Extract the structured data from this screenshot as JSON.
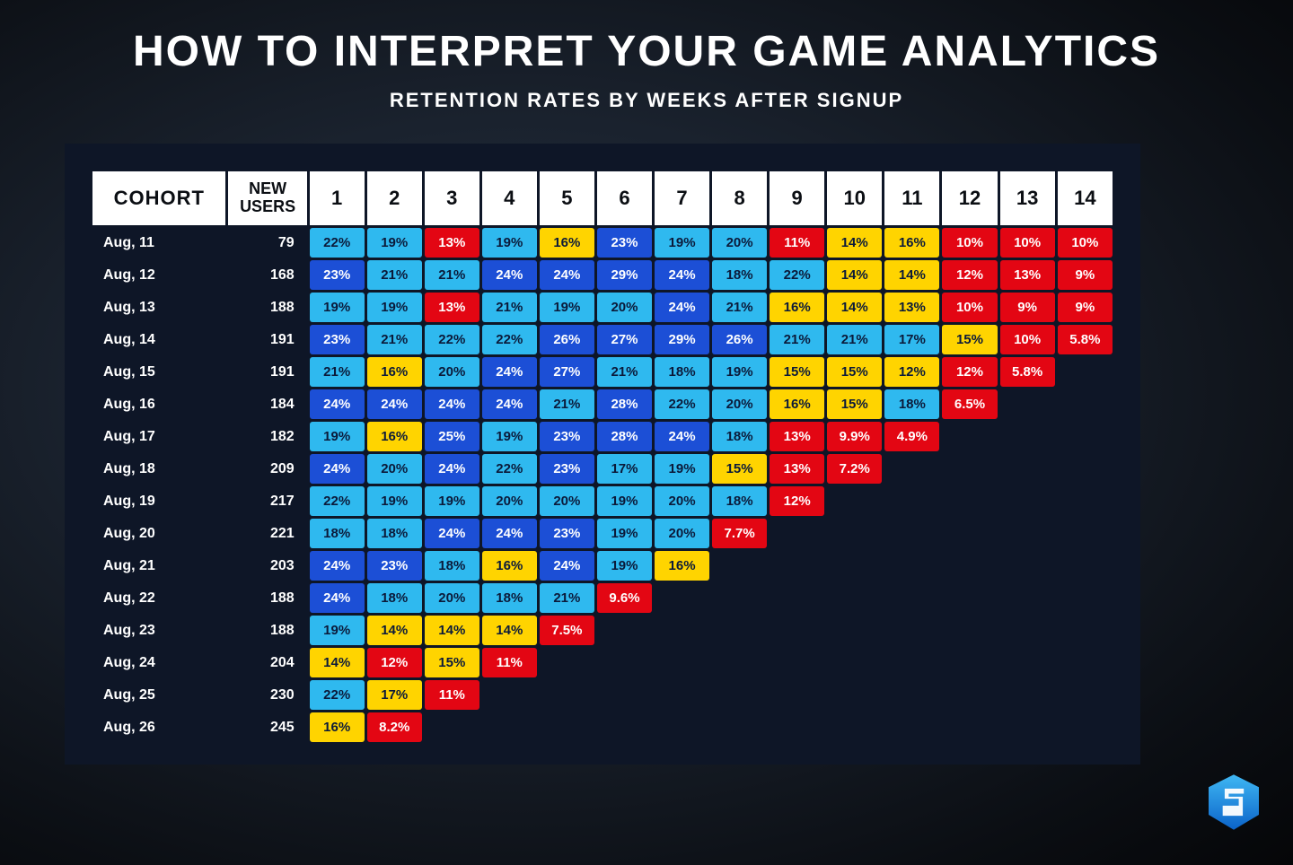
{
  "title": "HOW TO INTERPRET YOUR GAME ANALYTICS",
  "subtitle": "RETENTION RATES BY WEEKS AFTER SIGNUP",
  "table": {
    "cohort_header": "COHORT",
    "new_users_header": "NEW\nUSERS",
    "week_headers": [
      "1",
      "2",
      "3",
      "4",
      "5",
      "6",
      "7",
      "8",
      "9",
      "10",
      "11",
      "12",
      "13",
      "14"
    ],
    "header_bg": "#ffffff",
    "header_fg": "#0b0e13",
    "panel_bg": "#0e1627",
    "row_label_color": "#ffffff",
    "colors": {
      "dark_blue": {
        "bg": "#1c4fd6",
        "fg": "#ffffff"
      },
      "light_blue": {
        "bg": "#2fb9ef",
        "fg": "#0b1a3a"
      },
      "yellow": {
        "bg": "#ffd400",
        "fg": "#0b1a3a"
      },
      "red": {
        "bg": "#e30613",
        "fg": "#ffffff"
      }
    },
    "rows": [
      {
        "cohort": "Aug, 11",
        "new_users": 79,
        "cells": [
          {
            "v": "22%",
            "c": "light_blue"
          },
          {
            "v": "19%",
            "c": "light_blue"
          },
          {
            "v": "13%",
            "c": "red"
          },
          {
            "v": "19%",
            "c": "light_blue"
          },
          {
            "v": "16%",
            "c": "yellow"
          },
          {
            "v": "23%",
            "c": "dark_blue"
          },
          {
            "v": "19%",
            "c": "light_blue"
          },
          {
            "v": "20%",
            "c": "light_blue"
          },
          {
            "v": "11%",
            "c": "red"
          },
          {
            "v": "14%",
            "c": "yellow"
          },
          {
            "v": "16%",
            "c": "yellow"
          },
          {
            "v": "10%",
            "c": "red"
          },
          {
            "v": "10%",
            "c": "red"
          },
          {
            "v": "10%",
            "c": "red"
          }
        ]
      },
      {
        "cohort": "Aug, 12",
        "new_users": 168,
        "cells": [
          {
            "v": "23%",
            "c": "dark_blue"
          },
          {
            "v": "21%",
            "c": "light_blue"
          },
          {
            "v": "21%",
            "c": "light_blue"
          },
          {
            "v": "24%",
            "c": "dark_blue"
          },
          {
            "v": "24%",
            "c": "dark_blue"
          },
          {
            "v": "29%",
            "c": "dark_blue"
          },
          {
            "v": "24%",
            "c": "dark_blue"
          },
          {
            "v": "18%",
            "c": "light_blue"
          },
          {
            "v": "22%",
            "c": "light_blue"
          },
          {
            "v": "14%",
            "c": "yellow"
          },
          {
            "v": "14%",
            "c": "yellow"
          },
          {
            "v": "12%",
            "c": "red"
          },
          {
            "v": "13%",
            "c": "red"
          },
          {
            "v": "9%",
            "c": "red"
          }
        ]
      },
      {
        "cohort": "Aug, 13",
        "new_users": 188,
        "cells": [
          {
            "v": "19%",
            "c": "light_blue"
          },
          {
            "v": "19%",
            "c": "light_blue"
          },
          {
            "v": "13%",
            "c": "red"
          },
          {
            "v": "21%",
            "c": "light_blue"
          },
          {
            "v": "19%",
            "c": "light_blue"
          },
          {
            "v": "20%",
            "c": "light_blue"
          },
          {
            "v": "24%",
            "c": "dark_blue"
          },
          {
            "v": "21%",
            "c": "light_blue"
          },
          {
            "v": "16%",
            "c": "yellow"
          },
          {
            "v": "14%",
            "c": "yellow"
          },
          {
            "v": "13%",
            "c": "yellow"
          },
          {
            "v": "10%",
            "c": "red"
          },
          {
            "v": "9%",
            "c": "red"
          },
          {
            "v": "9%",
            "c": "red"
          }
        ]
      },
      {
        "cohort": "Aug, 14",
        "new_users": 191,
        "cells": [
          {
            "v": "23%",
            "c": "dark_blue"
          },
          {
            "v": "21%",
            "c": "light_blue"
          },
          {
            "v": "22%",
            "c": "light_blue"
          },
          {
            "v": "22%",
            "c": "light_blue"
          },
          {
            "v": "26%",
            "c": "dark_blue"
          },
          {
            "v": "27%",
            "c": "dark_blue"
          },
          {
            "v": "29%",
            "c": "dark_blue"
          },
          {
            "v": "26%",
            "c": "dark_blue"
          },
          {
            "v": "21%",
            "c": "light_blue"
          },
          {
            "v": "21%",
            "c": "light_blue"
          },
          {
            "v": "17%",
            "c": "light_blue"
          },
          {
            "v": "15%",
            "c": "yellow"
          },
          {
            "v": "10%",
            "c": "red"
          },
          {
            "v": "5.8%",
            "c": "red"
          }
        ]
      },
      {
        "cohort": "Aug, 15",
        "new_users": 191,
        "cells": [
          {
            "v": "21%",
            "c": "light_blue"
          },
          {
            "v": "16%",
            "c": "yellow"
          },
          {
            "v": "20%",
            "c": "light_blue"
          },
          {
            "v": "24%",
            "c": "dark_blue"
          },
          {
            "v": "27%",
            "c": "dark_blue"
          },
          {
            "v": "21%",
            "c": "light_blue"
          },
          {
            "v": "18%",
            "c": "light_blue"
          },
          {
            "v": "19%",
            "c": "light_blue"
          },
          {
            "v": "15%",
            "c": "yellow"
          },
          {
            "v": "15%",
            "c": "yellow"
          },
          {
            "v": "12%",
            "c": "yellow"
          },
          {
            "v": "12%",
            "c": "red"
          },
          {
            "v": "5.8%",
            "c": "red"
          }
        ]
      },
      {
        "cohort": "Aug, 16",
        "new_users": 184,
        "cells": [
          {
            "v": "24%",
            "c": "dark_blue"
          },
          {
            "v": "24%",
            "c": "dark_blue"
          },
          {
            "v": "24%",
            "c": "dark_blue"
          },
          {
            "v": "24%",
            "c": "dark_blue"
          },
          {
            "v": "21%",
            "c": "light_blue"
          },
          {
            "v": "28%",
            "c": "dark_blue"
          },
          {
            "v": "22%",
            "c": "light_blue"
          },
          {
            "v": "20%",
            "c": "light_blue"
          },
          {
            "v": "16%",
            "c": "yellow"
          },
          {
            "v": "15%",
            "c": "yellow"
          },
          {
            "v": "18%",
            "c": "light_blue"
          },
          {
            "v": "6.5%",
            "c": "red"
          }
        ]
      },
      {
        "cohort": "Aug, 17",
        "new_users": 182,
        "cells": [
          {
            "v": "19%",
            "c": "light_blue"
          },
          {
            "v": "16%",
            "c": "yellow"
          },
          {
            "v": "25%",
            "c": "dark_blue"
          },
          {
            "v": "19%",
            "c": "light_blue"
          },
          {
            "v": "23%",
            "c": "dark_blue"
          },
          {
            "v": "28%",
            "c": "dark_blue"
          },
          {
            "v": "24%",
            "c": "dark_blue"
          },
          {
            "v": "18%",
            "c": "light_blue"
          },
          {
            "v": "13%",
            "c": "red"
          },
          {
            "v": "9.9%",
            "c": "red"
          },
          {
            "v": "4.9%",
            "c": "red"
          }
        ]
      },
      {
        "cohort": "Aug, 18",
        "new_users": 209,
        "cells": [
          {
            "v": "24%",
            "c": "dark_blue"
          },
          {
            "v": "20%",
            "c": "light_blue"
          },
          {
            "v": "24%",
            "c": "dark_blue"
          },
          {
            "v": "22%",
            "c": "light_blue"
          },
          {
            "v": "23%",
            "c": "dark_blue"
          },
          {
            "v": "17%",
            "c": "light_blue"
          },
          {
            "v": "19%",
            "c": "light_blue"
          },
          {
            "v": "15%",
            "c": "yellow"
          },
          {
            "v": "13%",
            "c": "red"
          },
          {
            "v": "7.2%",
            "c": "red"
          }
        ]
      },
      {
        "cohort": "Aug, 19",
        "new_users": 217,
        "cells": [
          {
            "v": "22%",
            "c": "light_blue"
          },
          {
            "v": "19%",
            "c": "light_blue"
          },
          {
            "v": "19%",
            "c": "light_blue"
          },
          {
            "v": "20%",
            "c": "light_blue"
          },
          {
            "v": "20%",
            "c": "light_blue"
          },
          {
            "v": "19%",
            "c": "light_blue"
          },
          {
            "v": "20%",
            "c": "light_blue"
          },
          {
            "v": "18%",
            "c": "light_blue"
          },
          {
            "v": "12%",
            "c": "red"
          }
        ]
      },
      {
        "cohort": "Aug, 20",
        "new_users": 221,
        "cells": [
          {
            "v": "18%",
            "c": "light_blue"
          },
          {
            "v": "18%",
            "c": "light_blue"
          },
          {
            "v": "24%",
            "c": "dark_blue"
          },
          {
            "v": "24%",
            "c": "dark_blue"
          },
          {
            "v": "23%",
            "c": "dark_blue"
          },
          {
            "v": "19%",
            "c": "light_blue"
          },
          {
            "v": "20%",
            "c": "light_blue"
          },
          {
            "v": "7.7%",
            "c": "red"
          }
        ]
      },
      {
        "cohort": "Aug, 21",
        "new_users": 203,
        "cells": [
          {
            "v": "24%",
            "c": "dark_blue"
          },
          {
            "v": "23%",
            "c": "dark_blue"
          },
          {
            "v": "18%",
            "c": "light_blue"
          },
          {
            "v": "16%",
            "c": "yellow"
          },
          {
            "v": "24%",
            "c": "dark_blue"
          },
          {
            "v": "19%",
            "c": "light_blue"
          },
          {
            "v": "16%",
            "c": "yellow"
          }
        ]
      },
      {
        "cohort": "Aug, 22",
        "new_users": 188,
        "cells": [
          {
            "v": "24%",
            "c": "dark_blue"
          },
          {
            "v": "18%",
            "c": "light_blue"
          },
          {
            "v": "20%",
            "c": "light_blue"
          },
          {
            "v": "18%",
            "c": "light_blue"
          },
          {
            "v": "21%",
            "c": "light_blue"
          },
          {
            "v": "9.6%",
            "c": "red"
          }
        ]
      },
      {
        "cohort": "Aug, 23",
        "new_users": 188,
        "cells": [
          {
            "v": "19%",
            "c": "light_blue"
          },
          {
            "v": "14%",
            "c": "yellow"
          },
          {
            "v": "14%",
            "c": "yellow"
          },
          {
            "v": "14%",
            "c": "yellow"
          },
          {
            "v": "7.5%",
            "c": "red"
          }
        ]
      },
      {
        "cohort": "Aug, 24",
        "new_users": 204,
        "cells": [
          {
            "v": "14%",
            "c": "yellow"
          },
          {
            "v": "12%",
            "c": "red"
          },
          {
            "v": "15%",
            "c": "yellow"
          },
          {
            "v": "11%",
            "c": "red"
          }
        ]
      },
      {
        "cohort": "Aug, 25",
        "new_users": 230,
        "cells": [
          {
            "v": "22%",
            "c": "light_blue"
          },
          {
            "v": "17%",
            "c": "yellow"
          },
          {
            "v": "11%",
            "c": "red"
          }
        ]
      },
      {
        "cohort": "Aug, 26",
        "new_users": 245,
        "cells": [
          {
            "v": "16%",
            "c": "yellow"
          },
          {
            "v": "8.2%",
            "c": "red"
          }
        ]
      }
    ]
  }
}
